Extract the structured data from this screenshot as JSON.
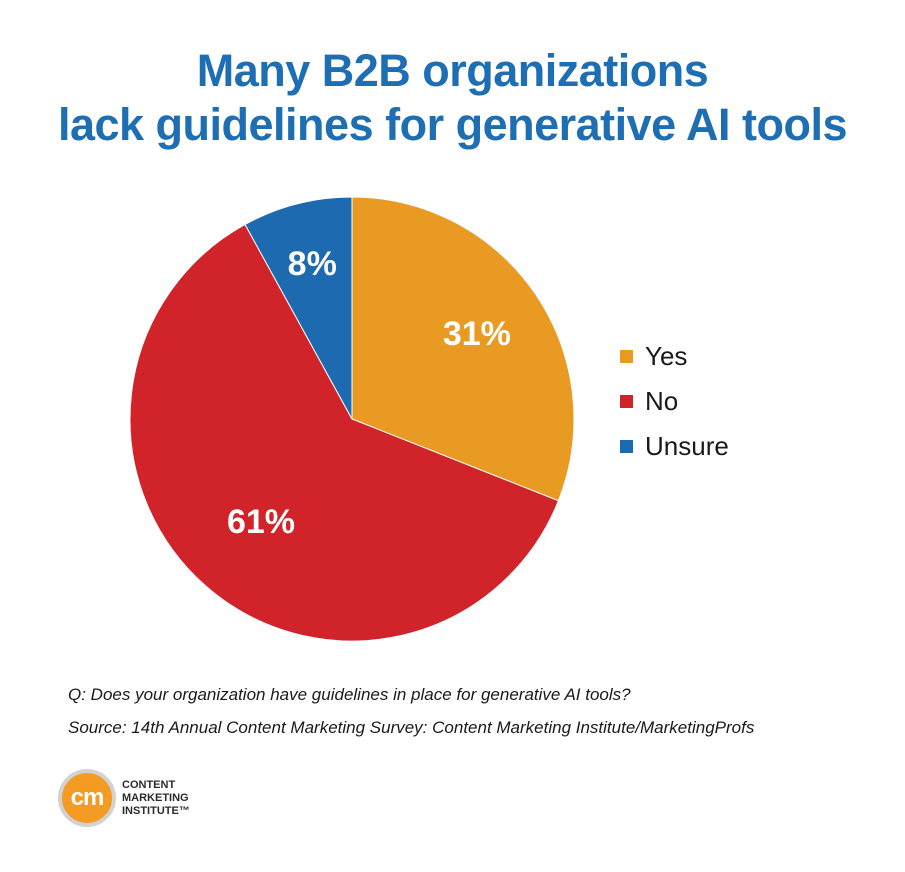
{
  "title": {
    "line1": "Many B2B organizations",
    "line2": "lack guidelines for generative AI tools"
  },
  "chart_data": {
    "type": "pie",
    "title": "Many B2B organizations lack guidelines for generative AI tools",
    "slices": [
      {
        "label": "Yes",
        "value": 31,
        "display": "31%",
        "color": "#e89a23"
      },
      {
        "label": "No",
        "value": 61,
        "display": "61%",
        "color": "#d0242a"
      },
      {
        "label": "Unsure",
        "value": 8,
        "display": "8%",
        "color": "#1e6ab0"
      }
    ],
    "start": "12 o'clock",
    "direction": "clockwise",
    "legend_position": "right"
  },
  "legend": {
    "items": [
      {
        "label": "Yes",
        "color": "#e89a23"
      },
      {
        "label": "No",
        "color": "#d0242a"
      },
      {
        "label": "Unsure",
        "color": "#1e6ab0"
      }
    ]
  },
  "footnotes": {
    "question": "Q: Does your organization have guidelines in place for generative AI tools?",
    "source": "Source: 14th Annual Content Marketing Survey: Content Marketing Institute/MarketingProfs"
  },
  "logo": {
    "mark": "cm",
    "line1": "CONTENT",
    "line2": "MARKETING",
    "line3": "INSTITUTE™",
    "color": "#f39b22"
  }
}
